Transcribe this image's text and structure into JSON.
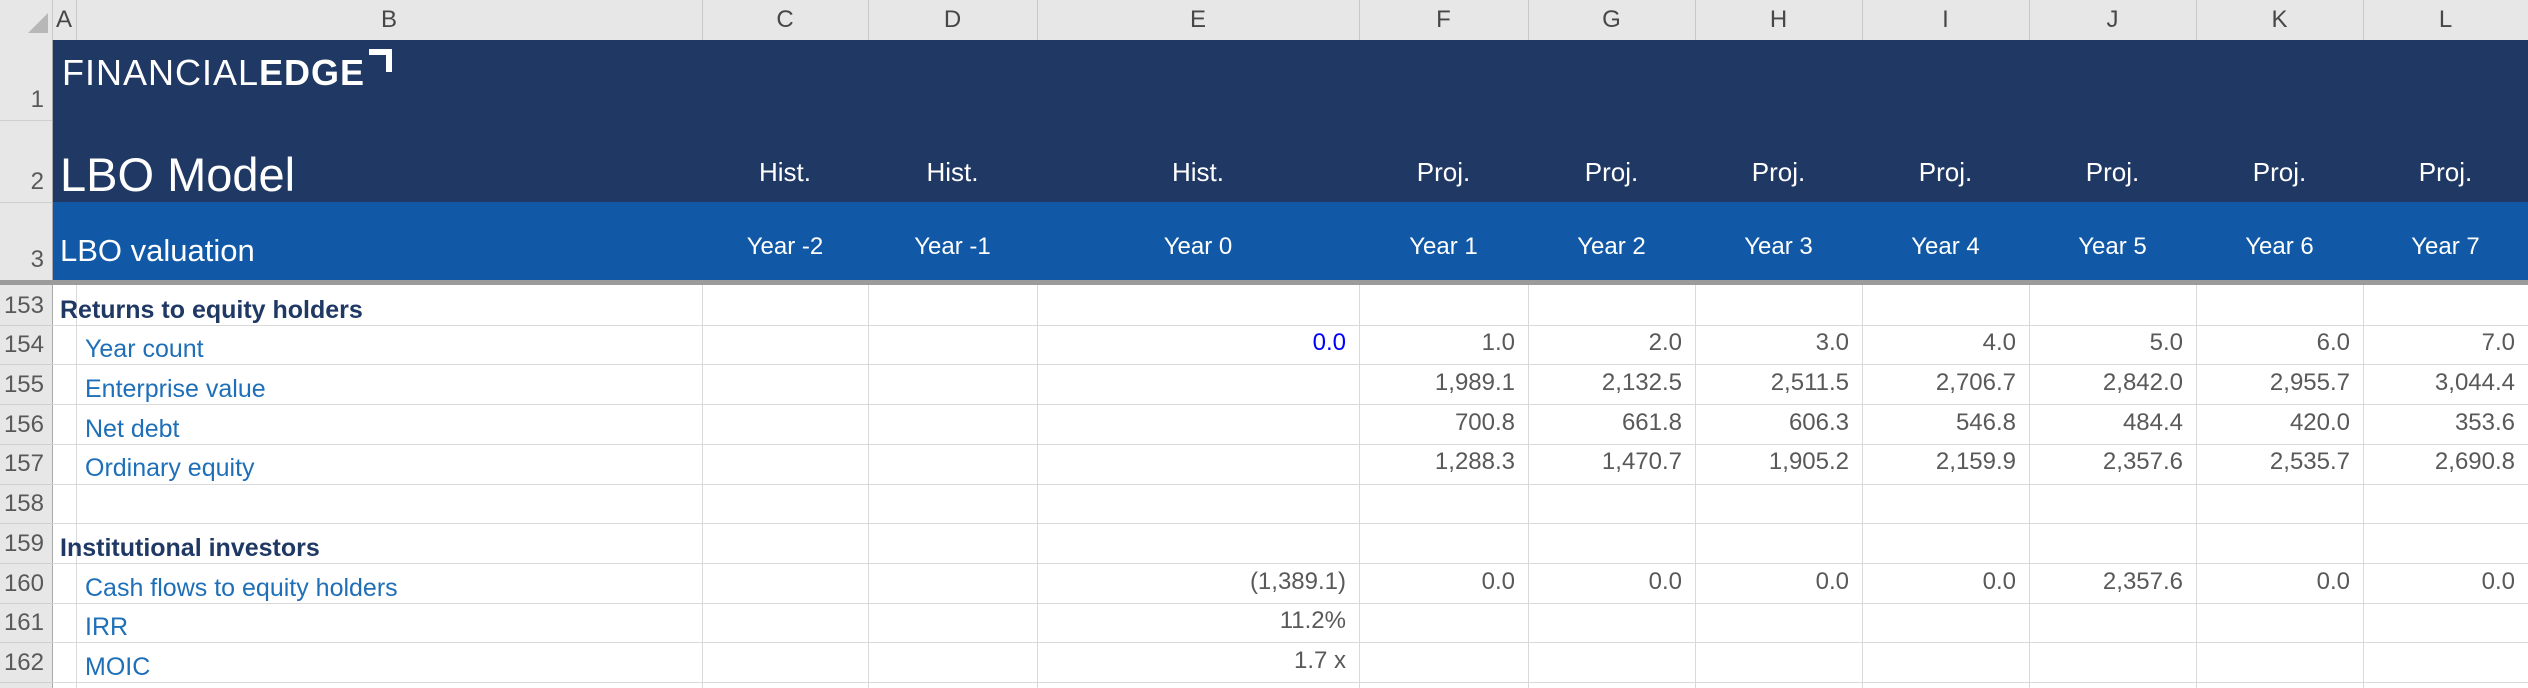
{
  "workbook": {
    "logo": {
      "thin": "FINANCIAL",
      "bold": "EDGE"
    },
    "model_title": "LBO Model",
    "sheet_title": "LBO valuation"
  },
  "colors": {
    "banner_navy": "#1F3864",
    "band_blue": "#1159A6",
    "section_text": "#1F3864",
    "item_text": "#1E6FB8",
    "number_text": "#595959",
    "input_text": "#0000FF",
    "grid_line": "#D9D9D9",
    "header_bg": "#E7E7E7",
    "divider": "#9B9B9B"
  },
  "columns": [
    {
      "letter": "A"
    },
    {
      "letter": "B"
    },
    {
      "letter": "C",
      "group": "Hist.",
      "year": "Year -2"
    },
    {
      "letter": "D",
      "group": "Hist.",
      "year": "Year -1"
    },
    {
      "letter": "E",
      "group": "Hist.",
      "year": "Year 0"
    },
    {
      "letter": "F",
      "group": "Proj.",
      "year": "Year 1"
    },
    {
      "letter": "G",
      "group": "Proj.",
      "year": "Year 2"
    },
    {
      "letter": "H",
      "group": "Proj.",
      "year": "Year 3"
    },
    {
      "letter": "I",
      "group": "Proj.",
      "year": "Year 4"
    },
    {
      "letter": "J",
      "group": "Proj.",
      "year": "Year 5"
    },
    {
      "letter": "K",
      "group": "Proj.",
      "year": "Year 6"
    },
    {
      "letter": "L",
      "group": "Proj.",
      "year": "Year 7"
    }
  ],
  "banner_row_numbers": [
    "1",
    "2",
    "3"
  ],
  "rows": [
    {
      "num": "153",
      "label": "Returns to equity holders",
      "style": "section",
      "cells": []
    },
    {
      "num": "154",
      "label": "Year count",
      "style": "item",
      "cells": [
        {
          "col": "E",
          "value": "0.0",
          "input": true
        },
        {
          "col": "F",
          "value": "1.0"
        },
        {
          "col": "G",
          "value": "2.0"
        },
        {
          "col": "H",
          "value": "3.0"
        },
        {
          "col": "I",
          "value": "4.0"
        },
        {
          "col": "J",
          "value": "5.0"
        },
        {
          "col": "K",
          "value": "6.0"
        },
        {
          "col": "L",
          "value": "7.0"
        }
      ]
    },
    {
      "num": "155",
      "label": "Enterprise value",
      "style": "item",
      "cells": [
        {
          "col": "F",
          "value": "1,989.1"
        },
        {
          "col": "G",
          "value": "2,132.5"
        },
        {
          "col": "H",
          "value": "2,511.5"
        },
        {
          "col": "I",
          "value": "2,706.7"
        },
        {
          "col": "J",
          "value": "2,842.0"
        },
        {
          "col": "K",
          "value": "2,955.7"
        },
        {
          "col": "L",
          "value": "3,044.4"
        }
      ]
    },
    {
      "num": "156",
      "label": "Net debt",
      "style": "item",
      "cells": [
        {
          "col": "F",
          "value": "700.8"
        },
        {
          "col": "G",
          "value": "661.8"
        },
        {
          "col": "H",
          "value": "606.3"
        },
        {
          "col": "I",
          "value": "546.8"
        },
        {
          "col": "J",
          "value": "484.4"
        },
        {
          "col": "K",
          "value": "420.0"
        },
        {
          "col": "L",
          "value": "353.6"
        }
      ]
    },
    {
      "num": "157",
      "label": "Ordinary equity",
      "style": "item",
      "cells": [
        {
          "col": "F",
          "value": "1,288.3"
        },
        {
          "col": "G",
          "value": "1,470.7"
        },
        {
          "col": "H",
          "value": "1,905.2"
        },
        {
          "col": "I",
          "value": "2,159.9"
        },
        {
          "col": "J",
          "value": "2,357.6"
        },
        {
          "col": "K",
          "value": "2,535.7"
        },
        {
          "col": "L",
          "value": "2,690.8"
        }
      ]
    },
    {
      "num": "158",
      "label": "",
      "style": "item",
      "cells": []
    },
    {
      "num": "159",
      "label": "Institutional investors",
      "style": "section",
      "cells": []
    },
    {
      "num": "160",
      "label": "Cash flows to equity holders",
      "style": "item",
      "cells": [
        {
          "col": "E",
          "value": "(1,389.1)"
        },
        {
          "col": "F",
          "value": "0.0"
        },
        {
          "col": "G",
          "value": "0.0"
        },
        {
          "col": "H",
          "value": "0.0"
        },
        {
          "col": "I",
          "value": "0.0"
        },
        {
          "col": "J",
          "value": "2,357.6"
        },
        {
          "col": "K",
          "value": "0.0"
        },
        {
          "col": "L",
          "value": "0.0"
        }
      ]
    },
    {
      "num": "161",
      "label": "IRR",
      "style": "item",
      "cells": [
        {
          "col": "E",
          "value": "11.2%"
        }
      ]
    },
    {
      "num": "162",
      "label": "MOIC",
      "style": "item",
      "cells": [
        {
          "col": "E",
          "value": "1.7 x"
        }
      ]
    }
  ]
}
